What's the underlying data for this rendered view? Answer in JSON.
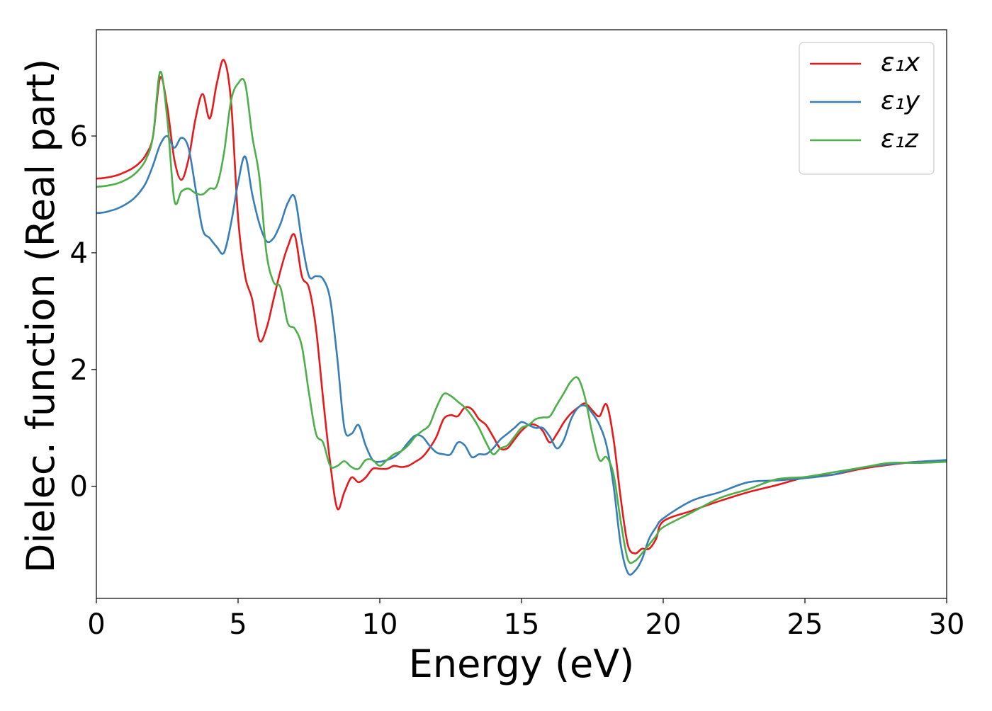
{
  "chart_data": {
    "type": "line",
    "xlabel": "Energy (eV)",
    "ylabel": "Dielec. function (Real part)",
    "x": [
      0,
      0.25,
      0.5,
      0.75,
      1,
      1.25,
      1.5,
      1.75,
      2,
      2.25,
      2.5,
      2.75,
      3,
      3.25,
      3.5,
      3.75,
      4,
      4.25,
      4.5,
      4.75,
      5,
      5.25,
      5.5,
      5.75,
      6,
      6.25,
      6.5,
      6.75,
      7,
      7.25,
      7.5,
      7.75,
      8,
      8.25,
      8.5,
      8.75,
      9,
      9.25,
      9.5,
      9.75,
      10,
      10.25,
      10.5,
      10.75,
      11,
      11.25,
      11.5,
      11.75,
      12,
      12.25,
      12.5,
      12.75,
      13,
      13.25,
      13.5,
      13.75,
      14,
      14.25,
      14.5,
      14.75,
      15,
      15.25,
      15.5,
      15.75,
      16,
      16.25,
      16.5,
      16.75,
      17,
      17.25,
      17.5,
      17.75,
      18,
      18.25,
      18.5,
      18.75,
      19,
      19.25,
      19.5,
      19.75,
      20,
      21,
      22,
      23,
      24,
      25,
      26,
      27,
      28,
      29,
      30
    ],
    "series": [
      {
        "name": "ε₁x",
        "color": "#e41a1c",
        "values": [
          5.27,
          5.28,
          5.3,
          5.33,
          5.38,
          5.44,
          5.53,
          5.68,
          6.0,
          7.0,
          6.5,
          5.6,
          5.25,
          5.6,
          6.3,
          6.72,
          6.3,
          6.9,
          7.3,
          6.6,
          4.6,
          3.6,
          3.2,
          2.5,
          2.7,
          3.2,
          3.7,
          4.1,
          4.3,
          3.6,
          3.4,
          2.7,
          1.5,
          0.4,
          -0.38,
          -0.1,
          0.15,
          0.07,
          0.15,
          0.3,
          0.3,
          0.3,
          0.35,
          0.33,
          0.35,
          0.42,
          0.5,
          0.65,
          0.85,
          1.15,
          1.22,
          1.2,
          1.35,
          1.32,
          1.15,
          1.05,
          0.85,
          0.65,
          0.65,
          0.8,
          0.95,
          1.05,
          1.05,
          0.95,
          0.75,
          0.9,
          1.1,
          1.25,
          1.35,
          1.42,
          1.3,
          1.2,
          1.4,
          0.8,
          -0.2,
          -1.0,
          -1.15,
          -1.07,
          -1.07,
          -0.9,
          -0.6,
          -0.42,
          -0.25,
          -0.1,
          0.02,
          0.15,
          0.2,
          0.3,
          0.37,
          0.42,
          0.43
        ]
      },
      {
        "name": "ε₁y",
        "color": "#377eb8",
        "values": [
          4.68,
          4.69,
          4.72,
          4.76,
          4.82,
          4.9,
          5.02,
          5.2,
          5.5,
          5.85,
          6.0,
          5.8,
          5.97,
          5.8,
          5.1,
          4.4,
          4.25,
          4.1,
          4.0,
          4.5,
          5.2,
          5.65,
          5.0,
          4.5,
          4.2,
          4.25,
          4.5,
          4.85,
          4.95,
          4.2,
          3.6,
          3.6,
          3.55,
          3.2,
          2.2,
          1.0,
          0.9,
          1.05,
          0.7,
          0.45,
          0.42,
          0.45,
          0.5,
          0.6,
          0.75,
          0.87,
          0.85,
          0.7,
          0.58,
          0.55,
          0.55,
          0.75,
          0.7,
          0.5,
          0.55,
          0.55,
          0.65,
          0.8,
          0.9,
          1.0,
          1.1,
          1.05,
          1.0,
          1.0,
          0.85,
          0.65,
          0.8,
          1.15,
          1.35,
          1.38,
          1.25,
          1.05,
          0.7,
          0.0,
          -1.0,
          -1.48,
          -1.45,
          -1.25,
          -0.9,
          -0.7,
          -0.55,
          -0.25,
          -0.1,
          0.07,
          0.1,
          0.14,
          0.2,
          0.32,
          0.38,
          0.42,
          0.45
        ]
      },
      {
        "name": "ε₁z",
        "color": "#4daf4a",
        "values": [
          5.13,
          5.14,
          5.16,
          5.19,
          5.24,
          5.31,
          5.42,
          5.6,
          6.0,
          7.1,
          6.3,
          4.9,
          5.05,
          5.1,
          5.02,
          5.0,
          5.1,
          5.15,
          5.7,
          6.6,
          6.9,
          6.9,
          6.0,
          5.3,
          4.0,
          3.5,
          3.4,
          2.8,
          2.7,
          2.4,
          1.6,
          0.9,
          0.75,
          0.35,
          0.35,
          0.43,
          0.33,
          0.3,
          0.45,
          0.45,
          0.35,
          0.45,
          0.55,
          0.6,
          0.7,
          0.85,
          0.95,
          1.05,
          1.35,
          1.58,
          1.55,
          1.45,
          1.35,
          1.2,
          1.0,
          0.75,
          0.55,
          0.65,
          0.7,
          0.85,
          1.0,
          1.05,
          1.15,
          1.18,
          1.2,
          1.4,
          1.6,
          1.8,
          1.85,
          1.5,
          0.9,
          0.45,
          0.5,
          0.2,
          -0.6,
          -1.25,
          -1.28,
          -1.15,
          -1.0,
          -0.85,
          -0.7,
          -0.45,
          -0.2,
          -0.05,
          0.12,
          0.16,
          0.24,
          0.32,
          0.4,
          0.4,
          0.42
        ]
      }
    ],
    "xlim": [
      0,
      30
    ],
    "ylim": [
      -1.92,
      7.82
    ],
    "xticks": [
      0,
      5,
      10,
      15,
      20,
      25,
      30
    ],
    "yticks": [
      0,
      2,
      4,
      6
    ],
    "grid": false,
    "legend": "upper right"
  }
}
